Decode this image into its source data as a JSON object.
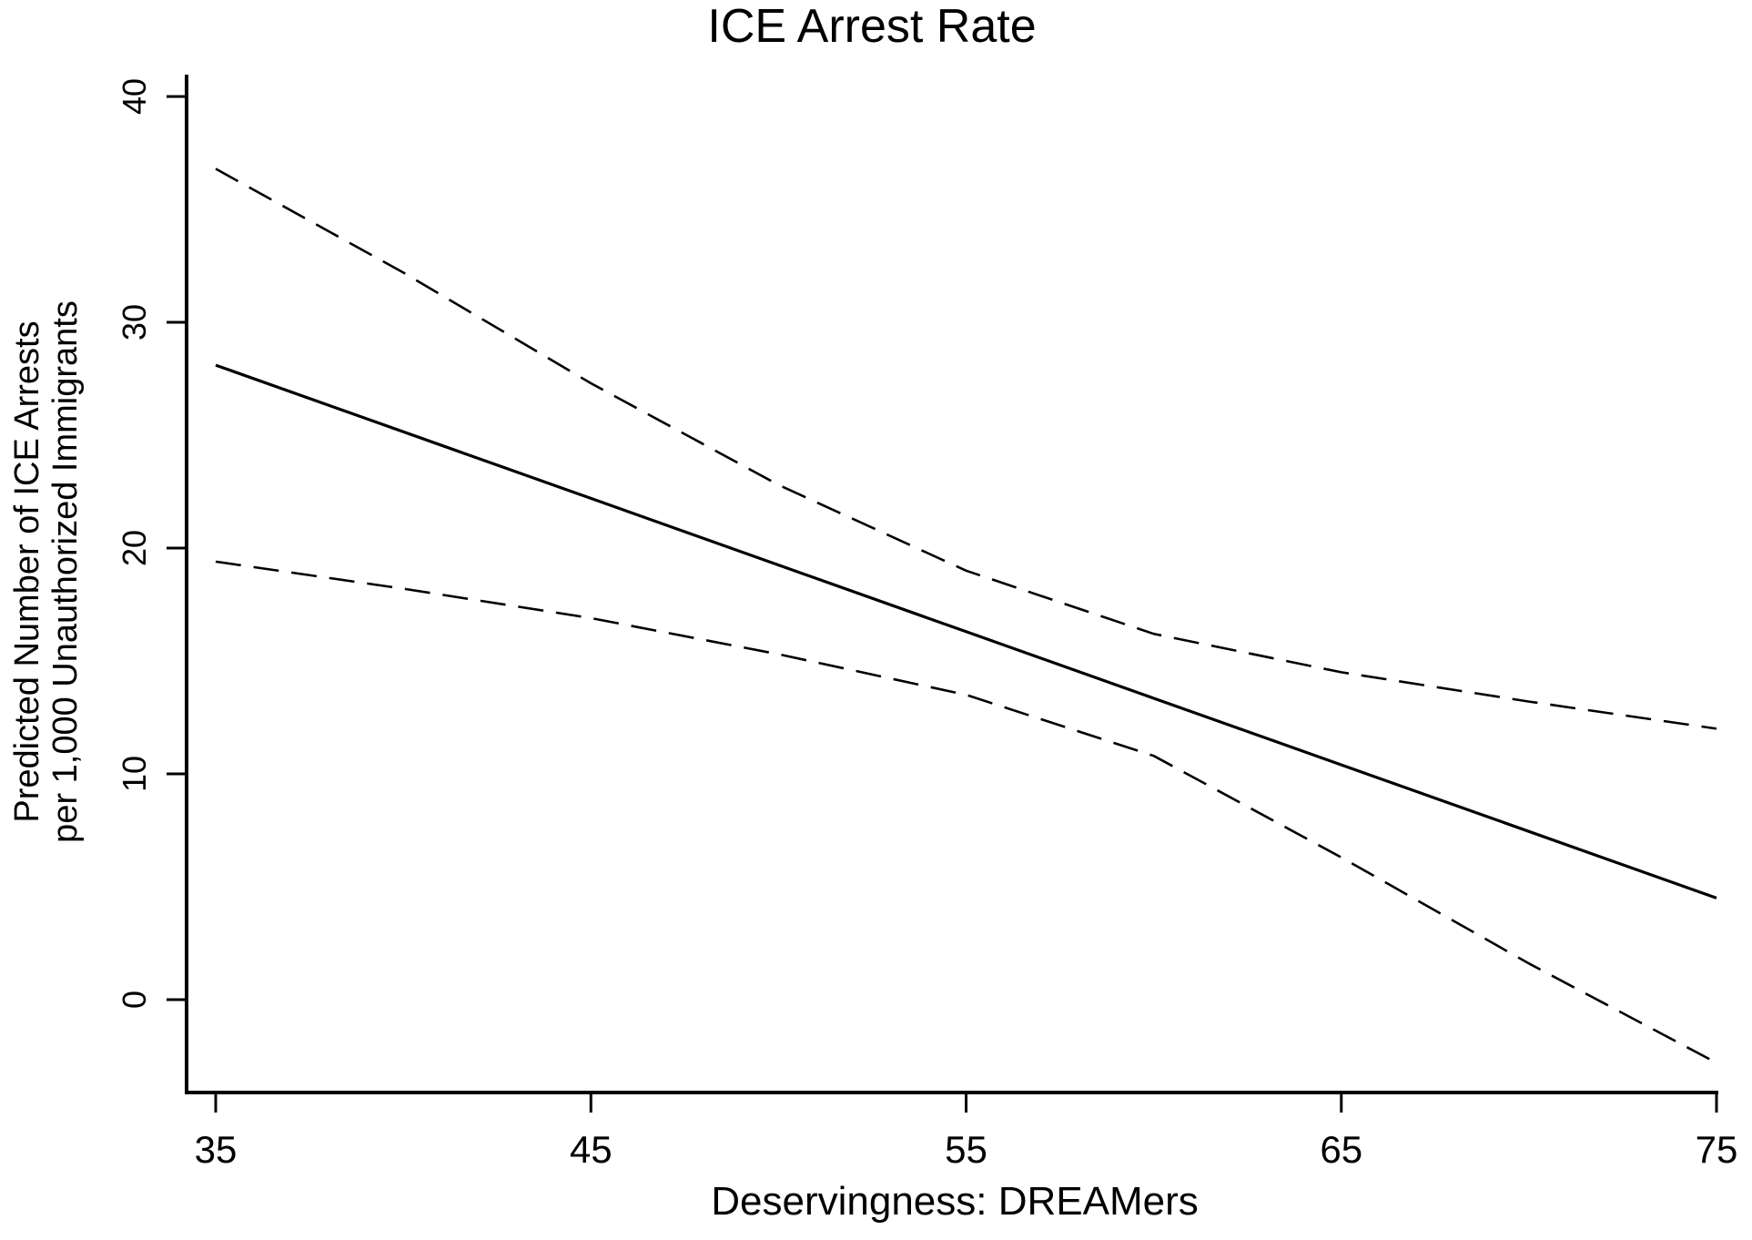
{
  "chart_data": {
    "type": "line",
    "title": "ICE Arrest Rate",
    "xlabel": "Deservingness: DREAMers",
    "ylabel": [
      "Predicted Number of ICE Arrests",
      "per 1,000 Unauthorized Immigrants"
    ],
    "xlim": [
      35,
      75
    ],
    "ylim": [
      -4.2,
      40
    ],
    "xticks": [
      35,
      45,
      55,
      65,
      75
    ],
    "yticks": [
      0,
      10,
      20,
      30,
      40
    ],
    "grid": false,
    "legend": "none",
    "line_color": "#000000",
    "series": [
      {
        "style": "solid",
        "x": [
          35,
          45,
          55,
          65,
          75
        ],
        "y": [
          28.1,
          22.2,
          16.3,
          10.4,
          4.5
        ]
      },
      {
        "style": "dashed",
        "x": [
          35,
          40,
          45,
          50,
          55,
          60,
          65,
          70,
          75
        ],
        "y": [
          36.8,
          32.2,
          27.3,
          22.8,
          19.0,
          16.2,
          14.5,
          13.2,
          12.0
        ]
      },
      {
        "style": "dashed",
        "x": [
          35,
          40,
          45,
          50,
          55,
          60,
          65,
          70,
          75
        ],
        "y": [
          19.4,
          18.2,
          16.9,
          15.3,
          13.5,
          10.8,
          6.3,
          1.6,
          -2.8
        ]
      }
    ]
  }
}
